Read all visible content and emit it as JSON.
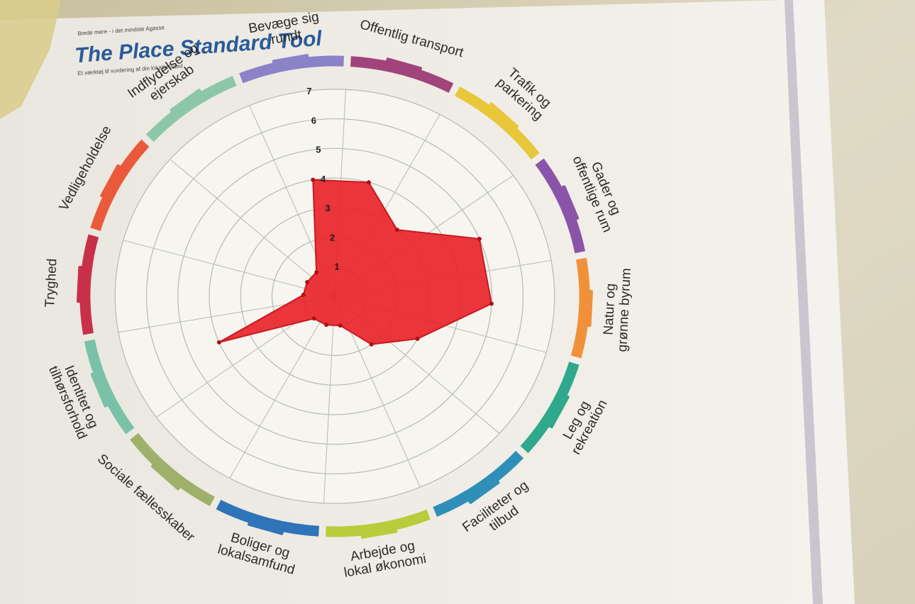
{
  "poster": {
    "kicker": "Brede mere - i det mindste Agasse",
    "title": "The Place Standard Tool",
    "subtitle": "Et værktøj til vurdering af din lokalitet/sted"
  },
  "chart_data": {
    "type": "radar",
    "range": [
      0,
      7
    ],
    "scale_labels": [
      "1",
      "2",
      "3",
      "4",
      "5",
      "6",
      "7"
    ],
    "categories": [
      "Bevæge sig rundt",
      "Offentlig transport",
      "Trafik og parkering",
      "Gader og offentlige rum",
      "Natur og grønne byrum",
      "Leg og rekreation",
      "Faciliteter og tilbud",
      "Arbejde og lokal økonomi",
      "Boliger og lokalsamfund",
      "Sociale fællesskaber",
      "Identitet og tilhørsforhold",
      "Tryghed",
      "Vedligeholdelse",
      "Indflydelse og ejerskab"
    ],
    "values": [
      4,
      4,
      3,
      5,
      5,
      3,
      2,
      1,
      1,
      1,
      4,
      1,
      1,
      1
    ],
    "colors": [
      "#8b82c8",
      "#a2447c",
      "#e8c73a",
      "#8a54a8",
      "#f0913a",
      "#2fa88c",
      "#2f8fb9",
      "#b9cc3c",
      "#2f73b9",
      "#9fb06a",
      "#79c2a8",
      "#c8304a",
      "#ea5a3a",
      "#8cc7a8"
    ],
    "fill": "#e8242a"
  }
}
